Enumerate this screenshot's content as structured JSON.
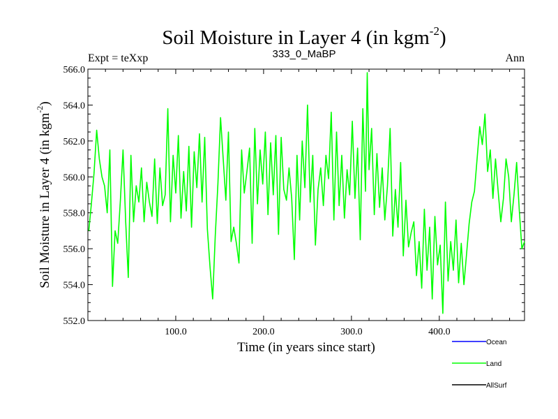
{
  "chart_data": {
    "type": "line",
    "title": "Soil Moisture in Layer 4 (in kgm",
    "title_sup": "-2",
    "title_close": ")",
    "subtitle_left": "Expt = teXxp",
    "subtitle_center": "333_0_MaBP",
    "subtitle_right": "Ann",
    "xlabel": "Time (in years since start)",
    "ylabel": "Soil Moisture in Layer 4 (in kgm",
    "ylabel_sup": "-2",
    "ylabel_close": ")",
    "xlim": [
      0,
      497
    ],
    "ylim": [
      552.0,
      566.0
    ],
    "xticks": [
      100,
      200,
      300,
      400
    ],
    "xtick_labels": [
      "100.0",
      "200.0",
      "300.0",
      "400.0"
    ],
    "yticks": [
      552,
      554,
      556,
      558,
      560,
      562,
      564,
      566
    ],
    "ytick_labels": [
      "552.0",
      "554.0",
      "556.0",
      "558.0",
      "560.0",
      "562.0",
      "564.0",
      "566.0"
    ],
    "legend": [
      {
        "name": "Ocean",
        "color": "#0000ff"
      },
      {
        "name": "Land",
        "color": "#00ff00"
      },
      {
        "name": "AllSurf",
        "color": "#000000"
      }
    ],
    "series": [
      {
        "name": "Land",
        "color": "#00ff00",
        "x": [
          1,
          4,
          7,
          10,
          13,
          16,
          19,
          22,
          25,
          28,
          31,
          34,
          37,
          40,
          43,
          46,
          49,
          52,
          55,
          58,
          61,
          64,
          67,
          70,
          73,
          76,
          79,
          82,
          85,
          88,
          91,
          94,
          97,
          100,
          103,
          106,
          109,
          112,
          115,
          118,
          121,
          124,
          127,
          130,
          133,
          136,
          139,
          142,
          145,
          148,
          151,
          154,
          157,
          160,
          163,
          166,
          169,
          172,
          175,
          178,
          181,
          184,
          187,
          190,
          193,
          196,
          199,
          202,
          205,
          208,
          211,
          214,
          217,
          220,
          223,
          226,
          229,
          232,
          235,
          238,
          241,
          244,
          247,
          250,
          253,
          256,
          259,
          262,
          265,
          268,
          271,
          274,
          277,
          280,
          283,
          286,
          289,
          292,
          295,
          298,
          301,
          304,
          307,
          310,
          313,
          316,
          318,
          320,
          323,
          326,
          329,
          332,
          335,
          338,
          341,
          344,
          347,
          350,
          353,
          356,
          359,
          362,
          365,
          368,
          371,
          374,
          377,
          380,
          383,
          386,
          389,
          392,
          395,
          398,
          401,
          404,
          407,
          410,
          413,
          416,
          419,
          422,
          425,
          428,
          431,
          434,
          437,
          440,
          443,
          446,
          449,
          452,
          455,
          458,
          461,
          464,
          467,
          470,
          473,
          476,
          479,
          482,
          485,
          488,
          491,
          494,
          497
        ],
        "values": [
          557.0,
          558.5,
          560.2,
          562.6,
          561.0,
          560.0,
          559.5,
          558.0,
          561.5,
          553.9,
          557.0,
          556.3,
          558.7,
          561.5,
          557.5,
          554.4,
          561.2,
          557.5,
          559.5,
          558.6,
          560.5,
          557.5,
          559.7,
          558.6,
          557.8,
          561.0,
          557.4,
          560.5,
          558.4,
          559.0,
          563.8,
          557.5,
          561.2,
          559.1,
          562.3,
          557.7,
          560.3,
          558.1,
          561.7,
          557.2,
          561.4,
          559.4,
          562.4,
          558.6,
          562.2,
          557.1,
          555.0,
          553.2,
          556.7,
          559.6,
          563.3,
          561.0,
          558.7,
          562.5,
          556.4,
          557.2,
          556.3,
          555.2,
          561.5,
          559.1,
          560.3,
          561.6,
          556.3,
          562.7,
          558.5,
          561.5,
          559.6,
          562.5,
          557.9,
          561.9,
          559.0,
          562.3,
          556.8,
          562.2,
          559.3,
          558.7,
          560.5,
          558.8,
          555.4,
          561.2,
          557.6,
          562.0,
          559.4,
          564.0,
          558.6,
          561.2,
          556.2,
          559.3,
          560.5,
          558.4,
          561.2,
          559.9,
          563.6,
          557.6,
          562.5,
          558.4,
          561.2,
          557.7,
          560.4,
          559.0,
          563.1,
          558.8,
          561.6,
          556.5,
          563.8,
          559.2,
          565.8,
          560.4,
          562.7,
          557.9,
          561.3,
          558.3,
          560.5,
          557.6,
          559.5,
          562.7,
          556.7,
          559.3,
          557.2,
          560.8,
          555.6,
          558.7,
          556.1,
          556.9,
          557.5,
          554.5,
          556.4,
          553.8,
          558.2,
          554.8,
          557.2,
          553.2,
          557.8,
          555.1,
          556.2,
          552.4,
          558.6,
          554.2,
          556.4,
          554.8,
          557.6,
          554.1,
          556.3,
          554.0,
          555.7,
          557.4,
          558.6,
          559.2,
          561.0,
          562.8,
          561.8,
          563.5,
          560.3,
          561.5,
          558.8,
          561.0,
          559.2,
          557.5,
          558.8,
          561.0,
          560.0,
          557.5,
          559.0,
          560.8,
          558.2,
          556.0,
          556.4
        ]
      }
    ]
  }
}
